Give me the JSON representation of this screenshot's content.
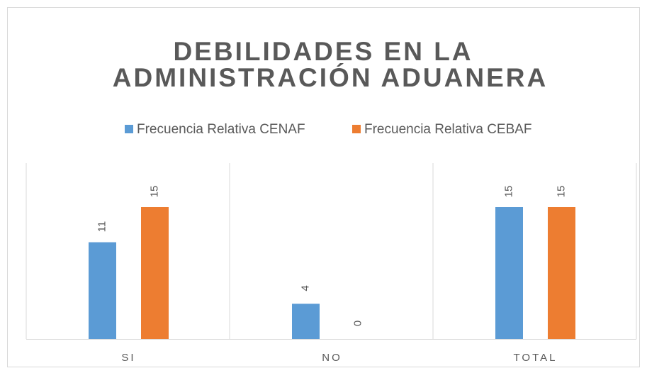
{
  "chart_data": {
    "type": "bar",
    "title": [
      "DEBILIDADES EN LA",
      "ADMINISTRACIÓN ADUANERA"
    ],
    "categories": [
      "SI",
      "NO",
      "TOTAL"
    ],
    "series": [
      {
        "name": "Frecuencia Relativa CENAF",
        "color": "#5b9bd5",
        "values": [
          11,
          4,
          15
        ]
      },
      {
        "name": "Frecuencia Relativa CEBAF",
        "color": "#ed7d31",
        "values": [
          15,
          0,
          15
        ]
      }
    ],
    "ylim": [
      0,
      20
    ],
    "legend": "top"
  }
}
